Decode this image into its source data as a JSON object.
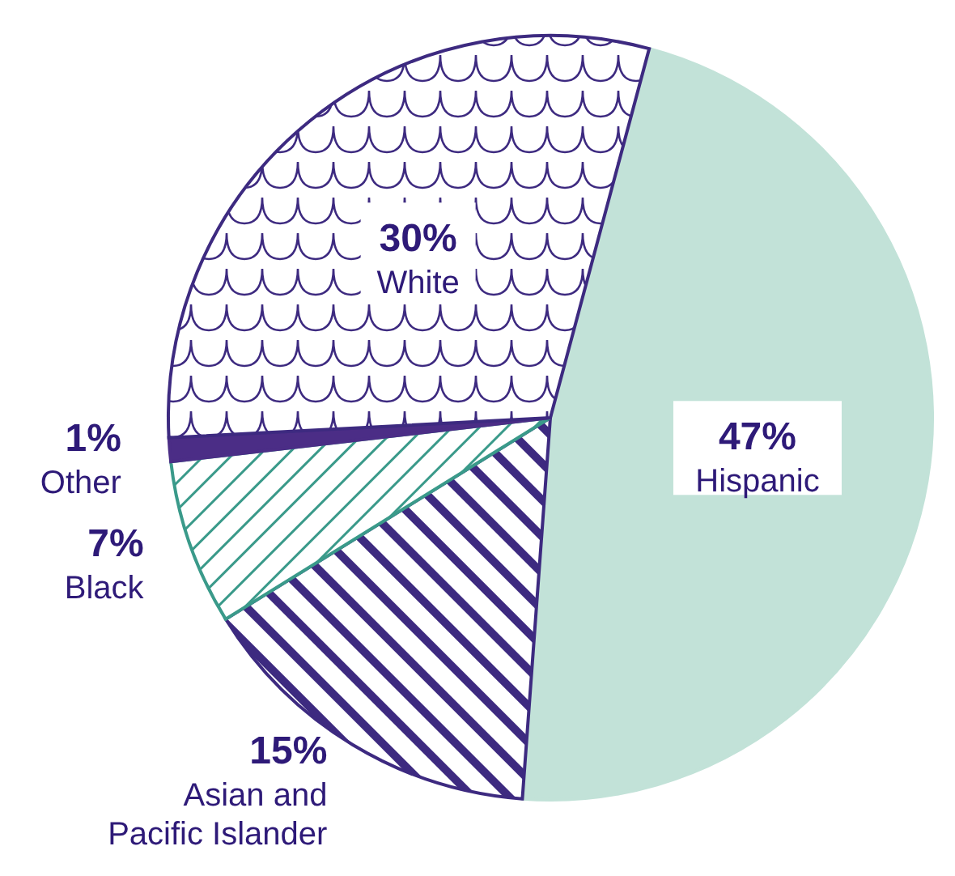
{
  "chart_data": {
    "type": "pie",
    "categories": [
      "Hispanic",
      "Asian and Pacific Islander",
      "Black",
      "Other",
      "White"
    ],
    "values": [
      47,
      15,
      7,
      1,
      30
    ],
    "value_labels": [
      "47%",
      "15%",
      "7%",
      "1%",
      "30%"
    ],
    "colors": [
      "#c2e2d8",
      "#3d2a80",
      "#3a9a8a",
      "#4b2d86",
      "#3d2a80"
    ],
    "legend": false
  }
}
